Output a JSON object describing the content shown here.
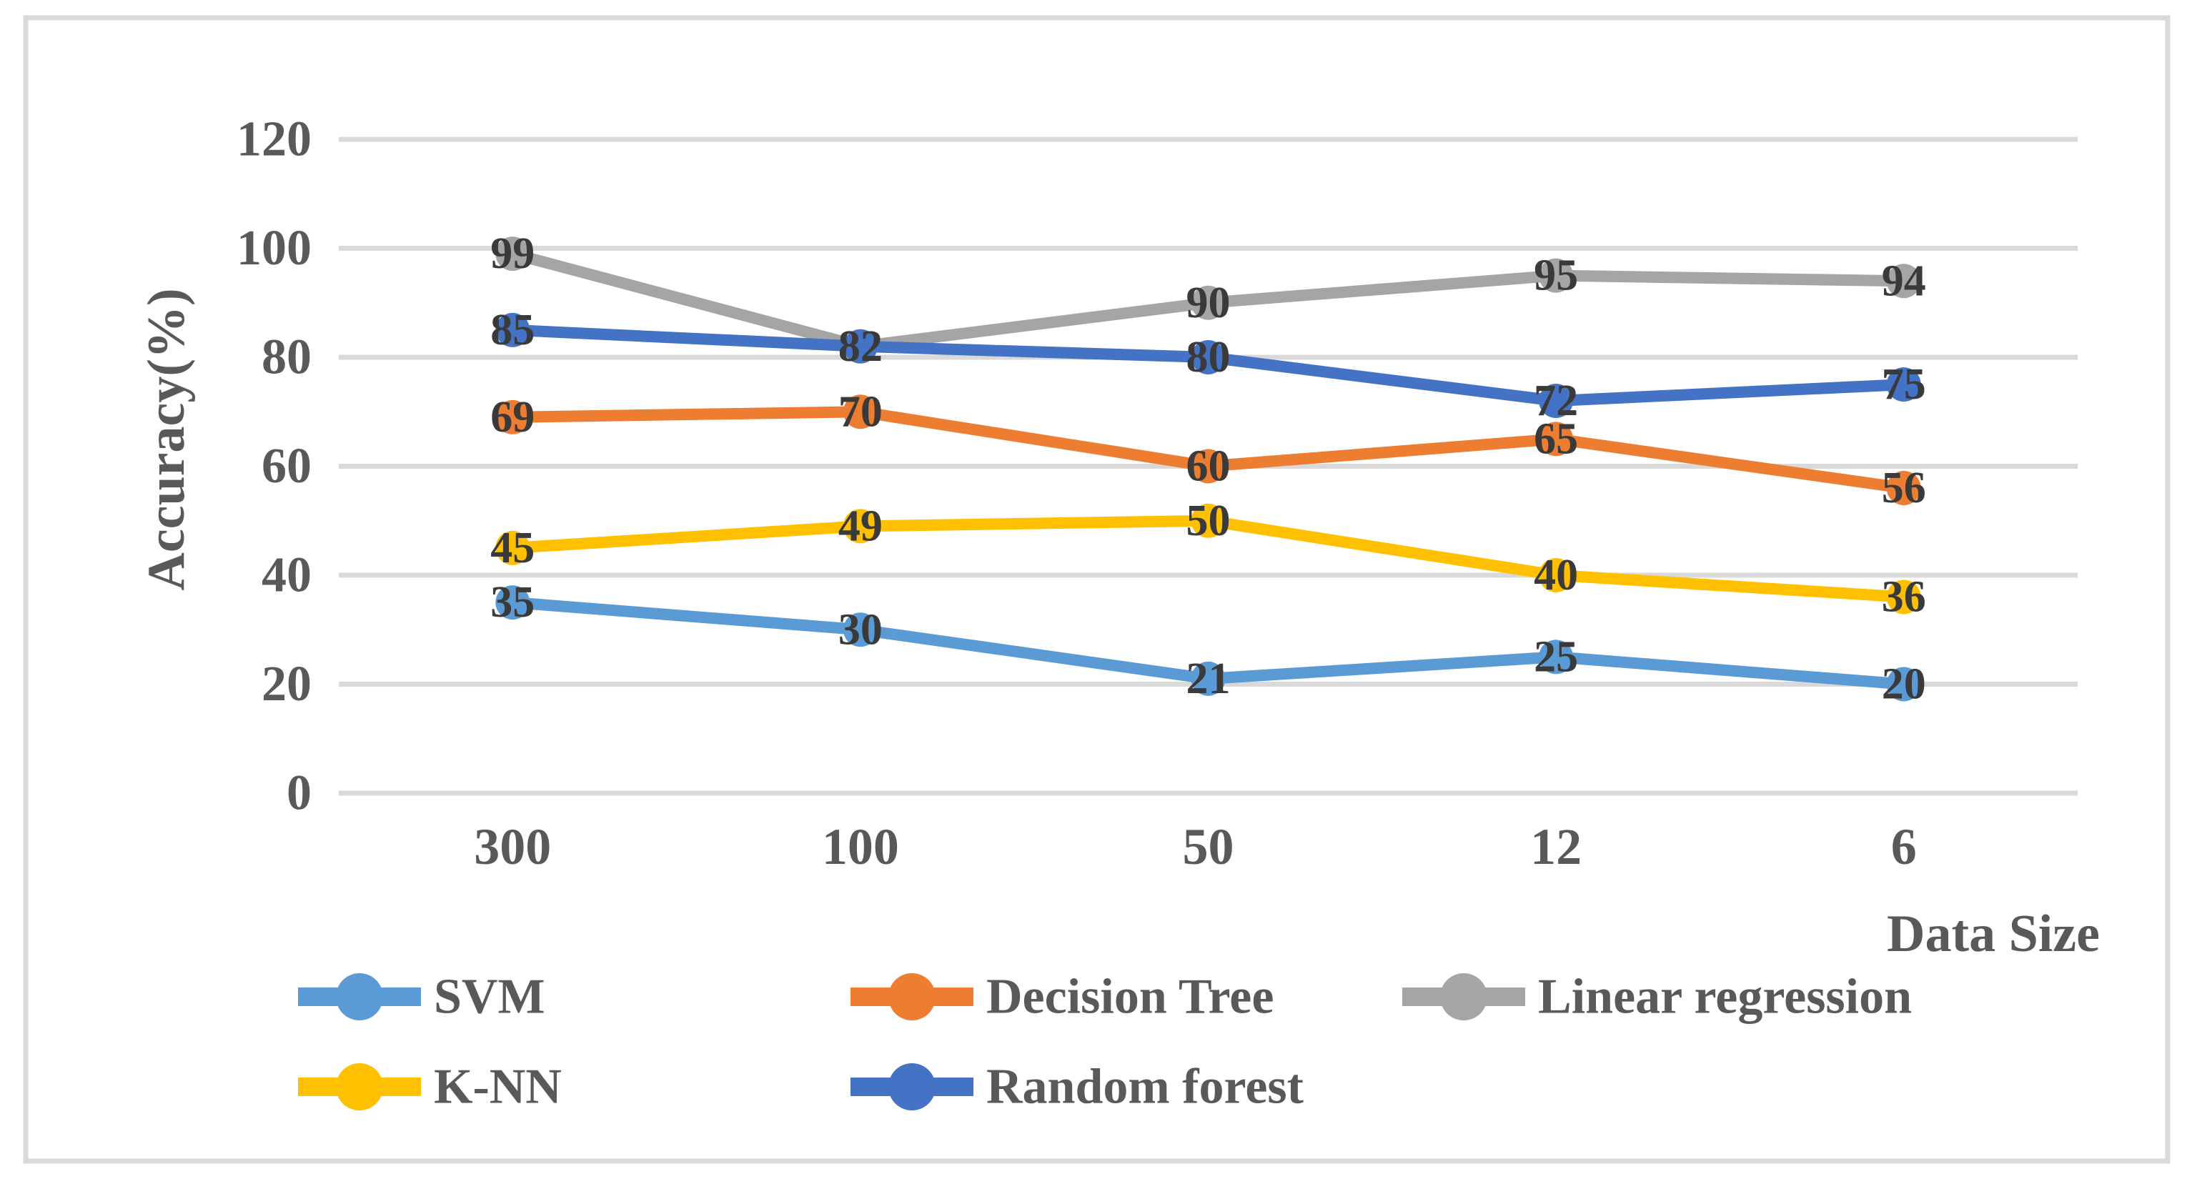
{
  "figure": {
    "background": "#FFFFFF",
    "border_color": "#D9D9D9"
  },
  "chart_data": {
    "type": "line",
    "title": "",
    "xlabel": "Data Size",
    "ylabel": "Accuracy(%)",
    "categories": [
      "300",
      "100",
      "50",
      "12",
      "6"
    ],
    "series": [
      {
        "name": "SVM",
        "color": "#5B9BD5",
        "values": [
          35,
          30,
          21,
          25,
          20
        ]
      },
      {
        "name": "Decision Tree",
        "color": "#ED7D31",
        "values": [
          69,
          70,
          60,
          65,
          56
        ]
      },
      {
        "name": "Linear regression",
        "color": "#A5A5A5",
        "values": [
          99,
          82,
          90,
          95,
          94
        ]
      },
      {
        "name": "K-NN",
        "color": "#FFC000",
        "values": [
          45,
          49,
          50,
          40,
          36
        ]
      },
      {
        "name": "Random forest",
        "color": "#4472C4",
        "values": [
          85,
          82,
          80,
          72,
          75
        ]
      }
    ],
    "draw_order": [
      "SVM",
      "Decision Tree",
      "Linear regression",
      "K-NN",
      "Random forest"
    ],
    "y_ticks": [
      0,
      20,
      40,
      60,
      80,
      100,
      120
    ],
    "ylim": [
      0,
      120
    ],
    "grid": true,
    "grid_color": "#D9D9D9",
    "data_labels": true,
    "marker": "circle",
    "legend_position": "bottom",
    "legend_rows": [
      [
        "SVM",
        "Decision Tree",
        "Linear regression"
      ],
      [
        "K-NN",
        "Random forest"
      ]
    ],
    "text_color": "#595959",
    "data_label_color": "#3A3A3A"
  }
}
